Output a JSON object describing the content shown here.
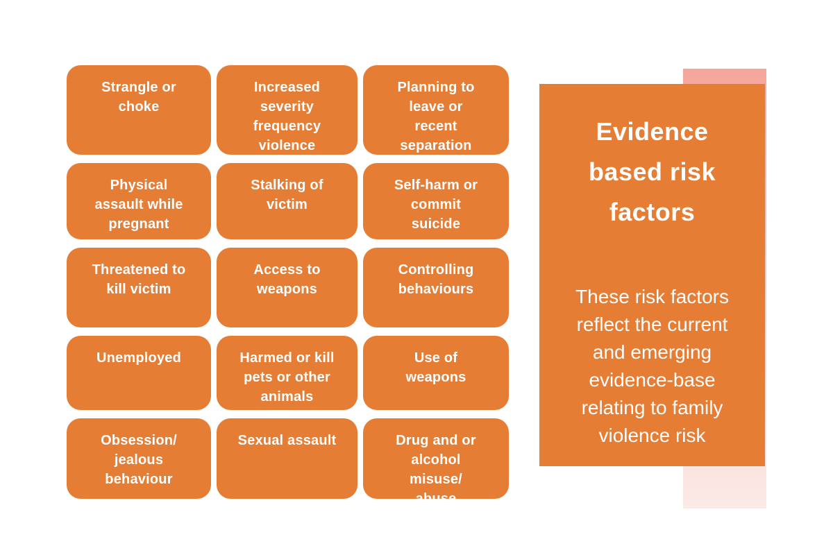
{
  "diagram": {
    "tiles": [
      {
        "label": "Strangle or\nchoke"
      },
      {
        "label": "Increased\nseverity\nfrequency\nviolence"
      },
      {
        "label": "Planning to\nleave or\nrecent\nseparation"
      },
      {
        "label": "Physical\nassault while\npregnant"
      },
      {
        "label": "Stalking of\nvictim"
      },
      {
        "label": "Self-harm or\ncommit\nsuicide"
      },
      {
        "label": "Threatened to\nkill victim"
      },
      {
        "label": "Access to\nweapons"
      },
      {
        "label": "Controlling\nbehaviours"
      },
      {
        "label": "Unemployed"
      },
      {
        "label": "Harmed or kill\npets or other\nanimals"
      },
      {
        "label": "Use of\nweapons"
      },
      {
        "label": "Obsession/\njealous\nbehaviour"
      },
      {
        "label": "Sexual assault"
      },
      {
        "label": "Drug and or\nalcohol\nmisuse/\nabuse"
      }
    ],
    "panel": {
      "title": "Evidence\nbased risk\nfactors",
      "body": "These risk factors\nreflect the current\nand emerging\nevidence-base\nrelating to family\nviolence risk"
    },
    "colors": {
      "background": "#FFFFFF",
      "tile_fill": "#E57D35",
      "panel_fill": "#E57D35",
      "ribbon_top": "#F6A69A",
      "ribbon_bottom": "#FBEAE7",
      "text": "#FFFFFF"
    }
  }
}
